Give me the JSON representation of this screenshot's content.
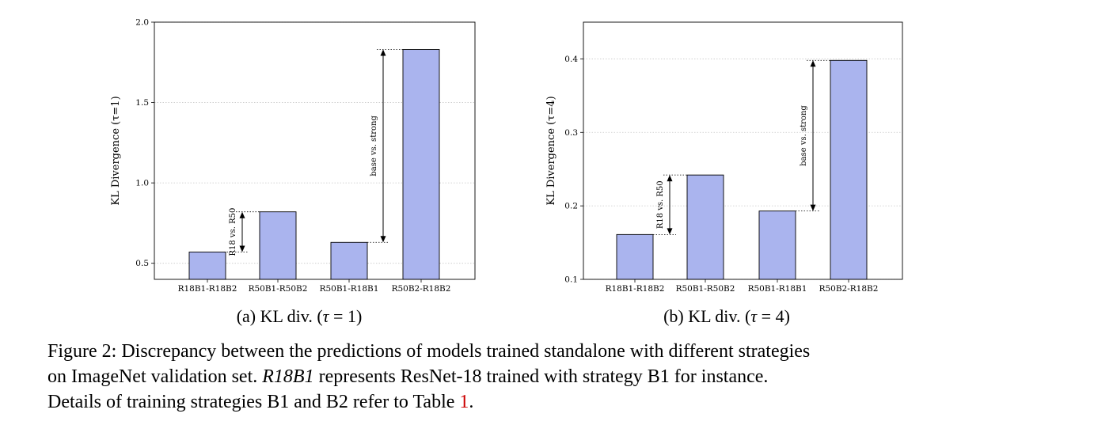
{
  "chart_data": [
    {
      "type": "bar",
      "categories": [
        "R18B1-R18B2",
        "R50B1-R50B2",
        "R50B1-R18B1",
        "R50B2-R18B2"
      ],
      "values": [
        0.57,
        0.82,
        0.63,
        1.83
      ],
      "ylabel": "KL Divergence (τ=1)",
      "ylim": [
        0.4,
        2.0
      ],
      "yticks": [
        "0.5",
        "1.0",
        "1.5",
        "2.0"
      ],
      "grid": true,
      "bar_color": "#aab4ee",
      "annotations": [
        {
          "text": "R18 vs. R50",
          "from": 0.57,
          "to": 0.82
        },
        {
          "text": "base vs. strong",
          "from": 0.63,
          "to": 1.83
        }
      ],
      "caption": {
        "prefix": "(a) KL div. (",
        "tau": "τ",
        "suffix": " = 1)"
      }
    },
    {
      "type": "bar",
      "categories": [
        "R18B1-R18B2",
        "R50B1-R50B2",
        "R50B1-R18B1",
        "R50B2-R18B2"
      ],
      "values": [
        0.161,
        0.242,
        0.193,
        0.398
      ],
      "ylabel": "KL Divergence (τ=4)",
      "ylim": [
        0.1,
        0.45
      ],
      "yticks": [
        "0.1",
        "0.2",
        "0.3",
        "0.4"
      ],
      "grid": true,
      "bar_color": "#aab4ee",
      "annotations": [
        {
          "text": "R18 vs. R50",
          "from": 0.161,
          "to": 0.242
        },
        {
          "text": "base vs. strong",
          "from": 0.193,
          "to": 0.398
        }
      ],
      "caption": {
        "prefix": "(b) KL div. (",
        "tau": "τ",
        "suffix": " = 4)"
      }
    }
  ],
  "caption": {
    "line1": "Figure 2: Discrepancy between the predictions of models trained standalone with different strategies",
    "line2_a": "on ImageNet validation set. ",
    "line2_b": "R18B1",
    "line2_c": " represents ResNet-18 trained with strategy B1 for instance.",
    "line3_a": "Details of training strategies B1 and B2 refer to Table ",
    "line3_ref": "1",
    "line3_b": "."
  }
}
